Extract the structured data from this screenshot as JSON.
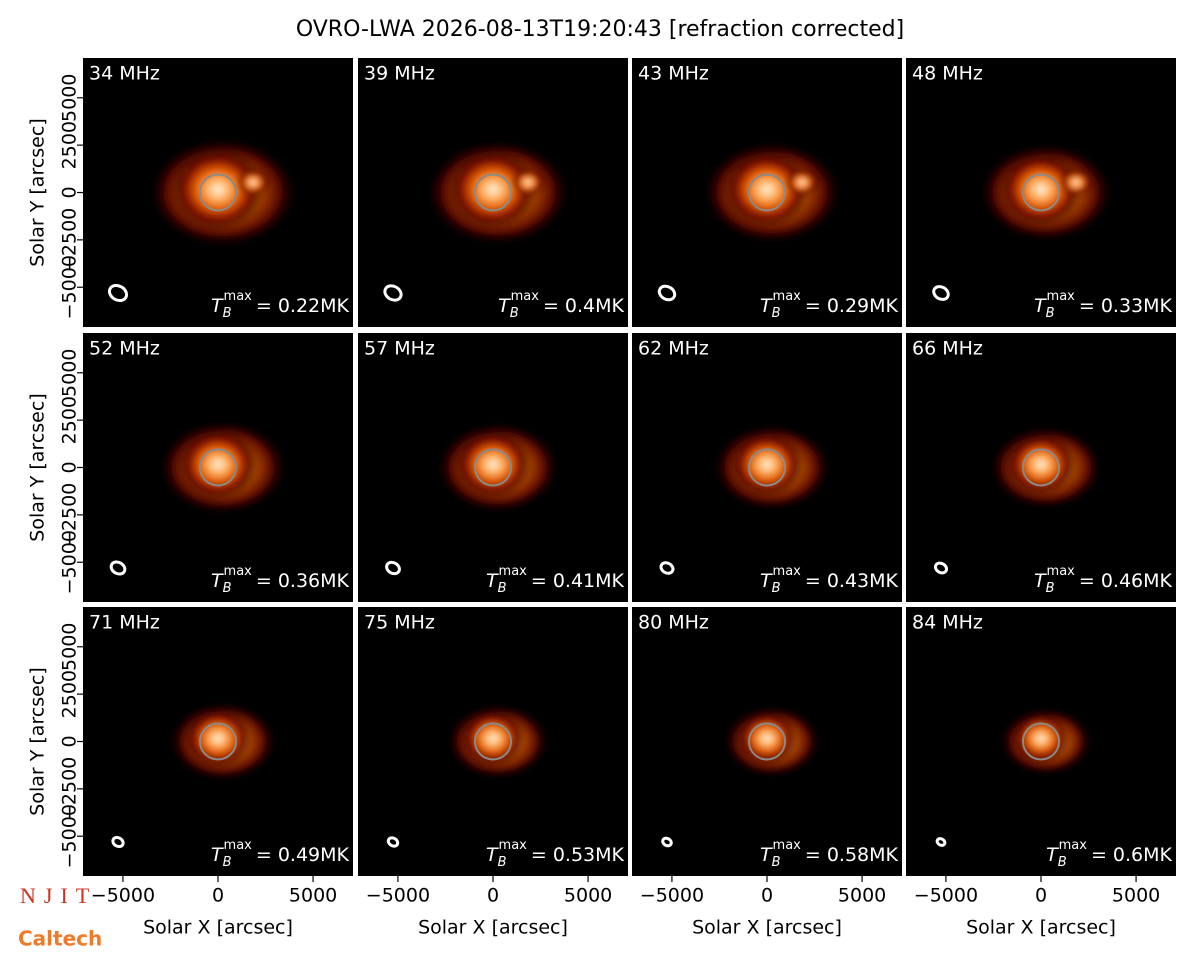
{
  "title": "OVRO-LWA 2026-08-13T19:20:43 [refraction corrected]",
  "logos": [
    "NJIT",
    "Caltech"
  ],
  "axes": {
    "xlabel": "Solar X [arcsec]",
    "ylabel": "Solar Y [arcsec]",
    "xlim": [
      -7100,
      7100
    ],
    "ylim": [
      -7100,
      7100
    ],
    "xticks": [
      {
        "value": -5000,
        "label": "−5000"
      },
      0,
      5000
    ],
    "yticks": [
      {
        "value": -5000,
        "label": "−5000"
      },
      {
        "value": -2500,
        "label": "−2500"
      },
      0,
      2500,
      5000
    ],
    "tmax_symbol": "T",
    "tmax_sub": "B",
    "tmax_sup": "max"
  },
  "chart_data": [
    {
      "type": "image",
      "label": "34 MHz",
      "tmax": "= 0.22MK"
    },
    {
      "type": "image",
      "label": "39 MHz",
      "tmax": "= 0.4MK"
    },
    {
      "type": "image",
      "label": "43 MHz",
      "tmax": "= 0.29MK"
    },
    {
      "type": "image",
      "label": "48 MHz",
      "tmax": "= 0.33MK"
    },
    {
      "type": "image",
      "label": "52 MHz",
      "tmax": "= 0.36MK"
    },
    {
      "type": "image",
      "label": "57 MHz",
      "tmax": "= 0.41MK"
    },
    {
      "type": "image",
      "label": "62 MHz",
      "tmax": "= 0.43MK"
    },
    {
      "type": "image",
      "label": "66 MHz",
      "tmax": "= 0.46MK"
    },
    {
      "type": "image",
      "label": "71 MHz",
      "tmax": "= 0.49MK"
    },
    {
      "type": "image",
      "label": "75 MHz",
      "tmax": "= 0.53MK"
    },
    {
      "type": "image",
      "label": "80 MHz",
      "tmax": "= 0.58MK"
    },
    {
      "type": "image",
      "label": "84 MHz",
      "tmax": "= 0.6MK"
    }
  ]
}
